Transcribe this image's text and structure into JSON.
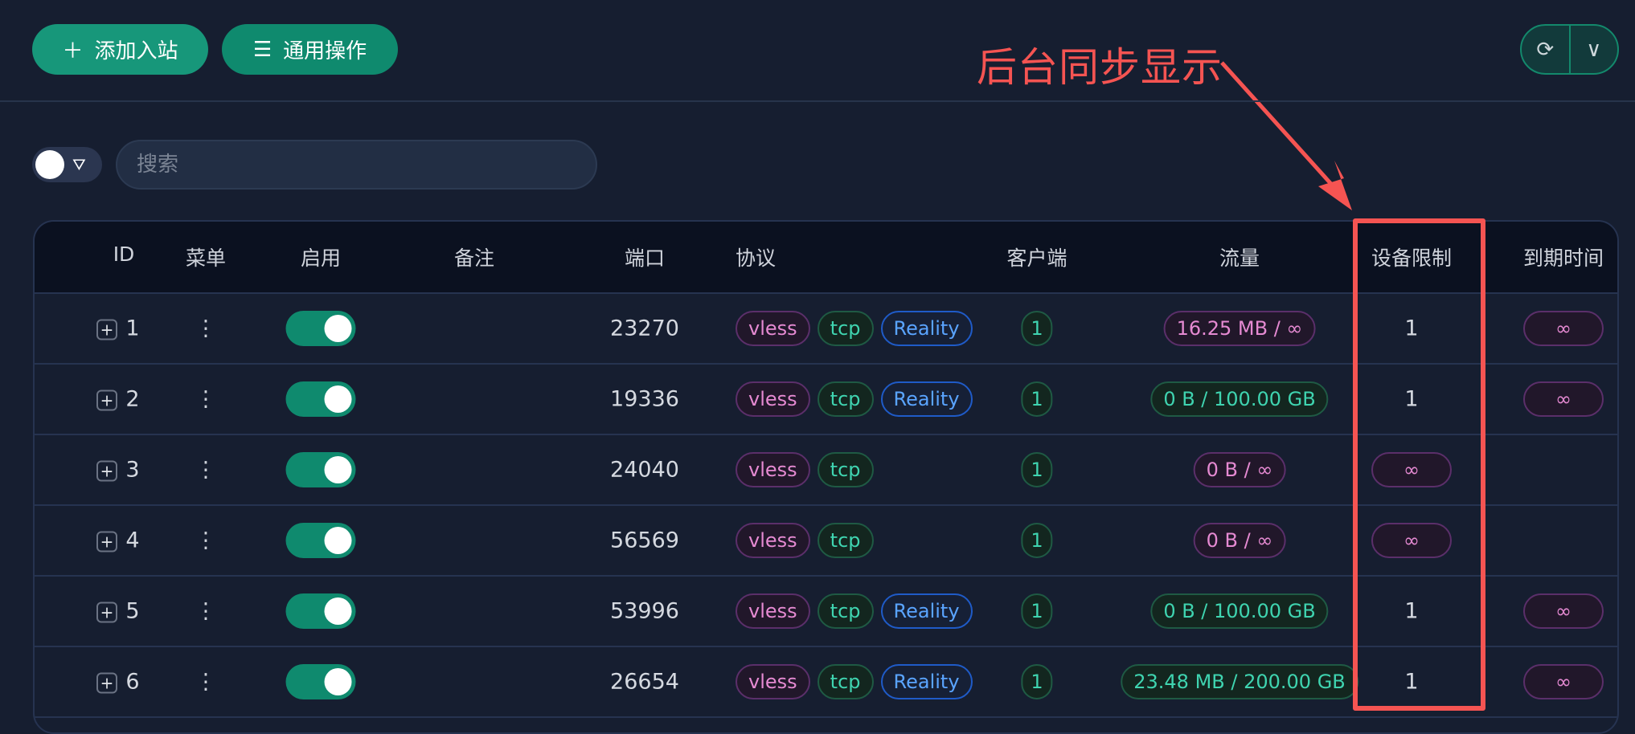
{
  "toolbar": {
    "add_label": "添加入站",
    "ops_label": "通用操作",
    "add_icon": "plus-icon",
    "ops_icon": "menu-icon",
    "refresh_icon": "refresh-icon",
    "dropdown_icon": "chevron-down-icon"
  },
  "annotation": {
    "text": "后台同步显示",
    "color": "#f55452"
  },
  "search": {
    "placeholder": "搜索"
  },
  "table": {
    "headers": [
      "ID",
      "菜单",
      "启用",
      "备注",
      "端口",
      "协议",
      "客户端",
      "流量",
      "设备限制",
      "到期时间"
    ],
    "rows": [
      {
        "id": "1",
        "enabled": true,
        "remark": "",
        "port": "23270",
        "protocols": [
          "vless",
          "tcp",
          "Reality"
        ],
        "clients": "1",
        "traffic": "16.25 MB / ∞",
        "traffic_style": "pink",
        "device_limit": "1",
        "expiry": "∞"
      },
      {
        "id": "2",
        "enabled": true,
        "remark": "",
        "port": "19336",
        "protocols": [
          "vless",
          "tcp",
          "Reality"
        ],
        "clients": "1",
        "traffic": "0 B / 100.00 GB",
        "traffic_style": "green",
        "device_limit": "1",
        "expiry": "∞"
      },
      {
        "id": "3",
        "enabled": true,
        "remark": "",
        "port": "24040",
        "protocols": [
          "vless",
          "tcp"
        ],
        "clients": "1",
        "traffic": "0 B / ∞",
        "traffic_style": "pink",
        "device_limit": "∞",
        "expiry": ""
      },
      {
        "id": "4",
        "enabled": true,
        "remark": "",
        "port": "56569",
        "protocols": [
          "vless",
          "tcp"
        ],
        "clients": "1",
        "traffic": "0 B / ∞",
        "traffic_style": "pink",
        "device_limit": "∞",
        "expiry": ""
      },
      {
        "id": "5",
        "enabled": true,
        "remark": "",
        "port": "53996",
        "protocols": [
          "vless",
          "tcp",
          "Reality"
        ],
        "clients": "1",
        "traffic": "0 B / 100.00 GB",
        "traffic_style": "green",
        "device_limit": "1",
        "expiry": "∞"
      },
      {
        "id": "6",
        "enabled": true,
        "remark": "",
        "port": "26654",
        "protocols": [
          "vless",
          "tcp",
          "Reality"
        ],
        "clients": "1",
        "traffic": "23.48 MB / 200.00 GB",
        "traffic_style": "green",
        "device_limit": "1",
        "expiry": "∞"
      }
    ]
  },
  "colors": {
    "accent": "#0f8a6e",
    "background": "#161e30",
    "highlight": "#f55452"
  }
}
